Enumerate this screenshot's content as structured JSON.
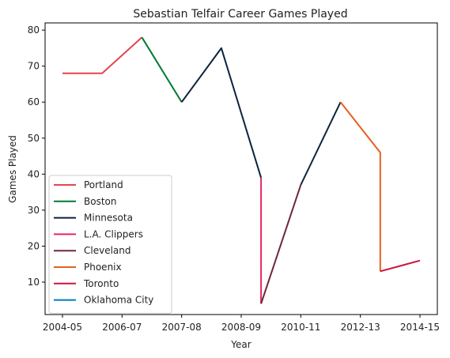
{
  "chart_data": {
    "type": "line",
    "title": "Sebastian Telfair Career Games Played",
    "xlabel": "Year",
    "ylabel": "Games Played",
    "x_tick_labels": [
      "2004-05",
      "2006-07",
      "2007-08",
      "2008-09",
      "2010-11",
      "2012-13",
      "2014-15"
    ],
    "y_ticks": [
      10,
      20,
      30,
      40,
      50,
      60,
      70,
      80
    ],
    "ylim": [
      1,
      82
    ],
    "legend_position": "lower-left",
    "series": [
      {
        "name": "Portland",
        "color": "#e0474c",
        "points": [
          {
            "x": 0,
            "y": 68
          },
          {
            "x": 1,
            "y": 68
          },
          {
            "x": 2,
            "y": 78
          }
        ]
      },
      {
        "name": "Boston",
        "color": "#007a33",
        "points": [
          {
            "x": 2,
            "y": 78
          },
          {
            "x": 3,
            "y": 60
          }
        ]
      },
      {
        "name": "Minnesota",
        "color": "#0c2340",
        "points": [
          {
            "x": 3,
            "y": 60
          },
          {
            "x": 4,
            "y": 75
          },
          {
            "x": 5,
            "y": 39
          }
        ]
      },
      {
        "name": "L.A. Clippers",
        "color": "#e8265e",
        "points": [
          {
            "x": 5,
            "y": 39
          },
          {
            "x": 5,
            "y": 4
          }
        ]
      },
      {
        "name": "Cleveland",
        "color": "#6f263d",
        "points": [
          {
            "x": 5,
            "y": 4
          },
          {
            "x": 6,
            "y": 37
          }
        ]
      },
      {
        "name": "Minnesota",
        "color": "#0c2340",
        "legend": false,
        "points": [
          {
            "x": 6,
            "y": 37
          },
          {
            "x": 7,
            "y": 60
          }
        ]
      },
      {
        "name": "Phoenix",
        "color": "#e56020",
        "points": [
          {
            "x": 7,
            "y": 60
          },
          {
            "x": 8,
            "y": 46
          },
          {
            "x": 8,
            "y": 13
          }
        ]
      },
      {
        "name": "Toronto",
        "color": "#ce1141",
        "points": [
          {
            "x": 8,
            "y": 13
          },
          {
            "x": 9,
            "y": 16
          }
        ]
      },
      {
        "name": "Oklahoma City",
        "color": "#007ac1",
        "points": [
          {
            "x": 9,
            "y": 16
          }
        ]
      }
    ]
  }
}
